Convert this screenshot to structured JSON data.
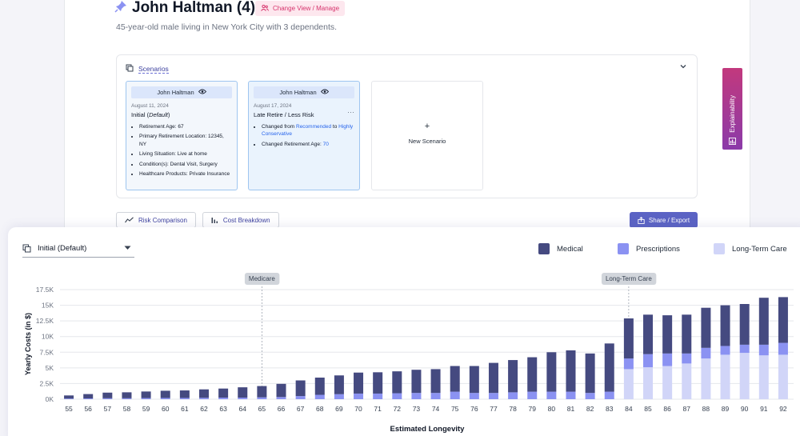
{
  "header": {
    "name": "John Haltman (4)",
    "change_view_label": "Change View / Manage",
    "subtitle": "45-year-old male living in New York City with 3 dependents."
  },
  "scenarios": {
    "heading": "Scenarios",
    "cards": [
      {
        "owner": "John Haltman",
        "date": "August 11, 2024",
        "title_main": "Initial (",
        "title_italic": "Default",
        "title_end": ")",
        "items": [
          "Retirement Age: 67",
          "Primary Retirement Location: 12345, NY",
          "Living Situation: Live at home",
          "Condition(s): Dental Visit, Surgery",
          "Healthcare Products: Private Insurance"
        ]
      },
      {
        "owner": "John Haltman",
        "date": "August 17, 2024",
        "title": "Late Retire / Less Risk",
        "item1_pre": "Changed from ",
        "item1_a": "Recommended",
        "item1_mid": " to ",
        "item1_b": "Highly Conservative",
        "item2_pre": "Changed Retirement Age: ",
        "item2_val": "70"
      }
    ],
    "new_label": "New Scenario"
  },
  "explainability_label": "Explainability",
  "tabs": [
    "Risk Comparison",
    "Cost Breakdown"
  ],
  "share_label": "Share / Export",
  "selector_value": "Initial (Default)",
  "legend": [
    {
      "name": "Medical",
      "color": "#454a80"
    },
    {
      "name": "Prescriptions",
      "color": "#8b92f2"
    },
    {
      "name": "Long-Term Care",
      "color": "#d1d5f8"
    }
  ],
  "chart_data": {
    "type": "bar",
    "stacked": true,
    "xlabel": "Estimated Longevity",
    "ylabel": "Yearly Costs (in $)",
    "ylim": [
      0,
      17500
    ],
    "yticks": [
      "0K",
      "2.5K",
      "5K",
      "7.5K",
      "10K",
      "12.5K",
      "15K",
      "17.5K"
    ],
    "grid": true,
    "annotations": [
      {
        "label": "Medicare",
        "x": "65"
      },
      {
        "label": "Long-Term Care",
        "x": "84"
      }
    ],
    "categories": [
      "55",
      "56",
      "57",
      "58",
      "59",
      "60",
      "61",
      "62",
      "63",
      "64",
      "65",
      "66",
      "67",
      "68",
      "69",
      "70",
      "71",
      "72",
      "73",
      "74",
      "75",
      "76",
      "77",
      "78",
      "79",
      "80",
      "81",
      "82",
      "83",
      "84",
      "85",
      "86",
      "87",
      "88",
      "89",
      "90",
      "91",
      "92"
    ],
    "series": [
      {
        "name": "Medical",
        "color": "#454a80",
        "values": [
          500,
          700,
          900,
          950,
          1050,
          1150,
          1200,
          1350,
          1450,
          1650,
          1800,
          2100,
          2500,
          2750,
          3000,
          3350,
          3400,
          3500,
          3700,
          3800,
          4100,
          4300,
          4800,
          5150,
          5500,
          6300,
          6600,
          6300,
          7700,
          6400,
          6300,
          6100,
          6200,
          6400,
          6500,
          6500,
          7500,
          7300
        ]
      },
      {
        "name": "Prescriptions",
        "color": "#8b92f2",
        "values": [
          100,
          120,
          150,
          150,
          180,
          200,
          200,
          220,
          250,
          250,
          300,
          350,
          500,
          700,
          800,
          900,
          900,
          950,
          1000,
          1000,
          1200,
          1000,
          1000,
          1100,
          1200,
          1200,
          1200,
          1000,
          1200,
          1700,
          2100,
          2000,
          1600,
          1700,
          1400,
          1300,
          1700,
          1900
        ]
      },
      {
        "name": "Long-Term Care",
        "color": "#d1d5f8",
        "values": [
          0,
          0,
          0,
          0,
          0,
          0,
          0,
          0,
          0,
          0,
          0,
          0,
          0,
          0,
          0,
          0,
          0,
          0,
          0,
          0,
          0,
          0,
          0,
          0,
          0,
          0,
          0,
          0,
          0,
          4800,
          5100,
          5300,
          5700,
          6500,
          7100,
          7400,
          7000,
          7100
        ]
      }
    ]
  }
}
